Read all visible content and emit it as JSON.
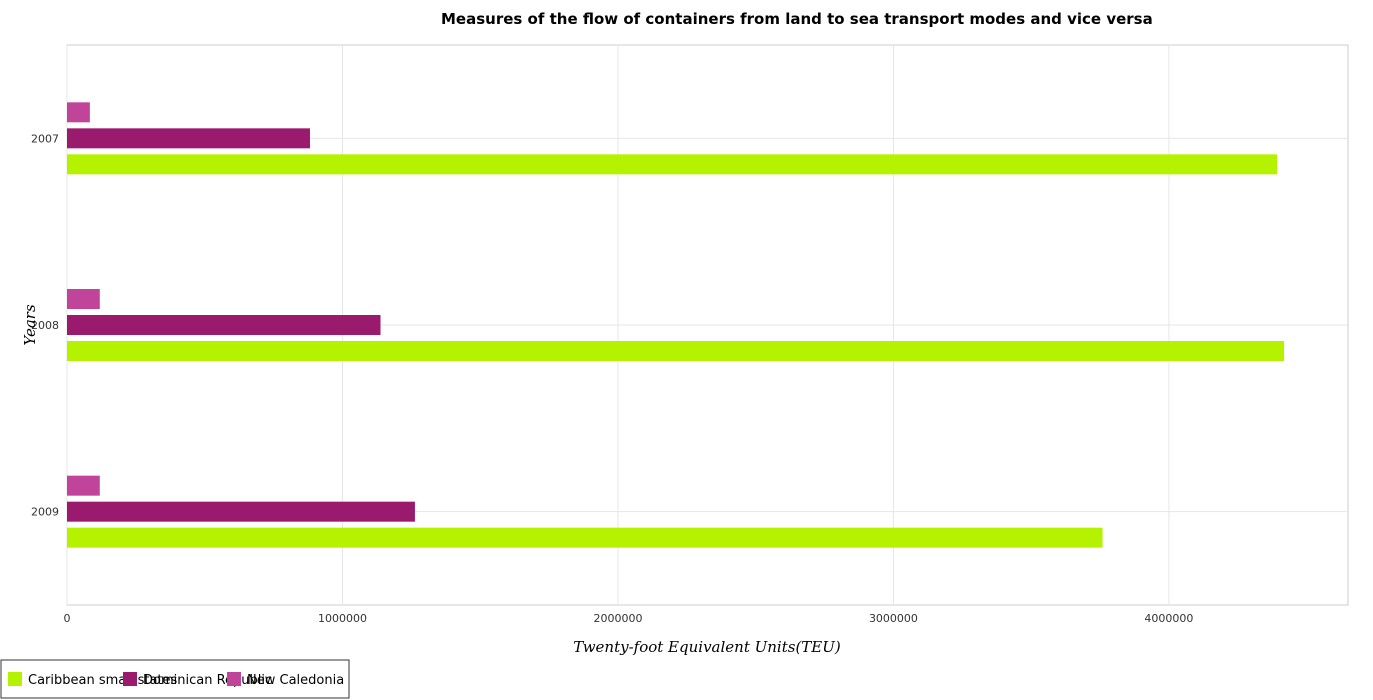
{
  "chart_data": {
    "type": "bar",
    "orientation": "horizontal",
    "title": "Measures of the flow of containers from land to sea transport modes and vice versa",
    "xlabel": "Twenty-foot Equivalent Units(TEU)",
    "ylabel": "Years",
    "categories": [
      "2007",
      "2008",
      "2009"
    ],
    "series": [
      {
        "name": "Caribbean small states",
        "color": "#b5f200",
        "values": [
          4393000,
          4418000,
          3759000
        ]
      },
      {
        "name": "Dominican Republic",
        "color": "#9a1a6e",
        "values": [
          882000,
          1138000,
          1263000
        ]
      },
      {
        "name": "New Caledonia",
        "color": "#c0449a",
        "values": [
          83000,
          119000,
          119000
        ]
      }
    ],
    "xlim": [
      0,
      4650000
    ],
    "xticks": [
      0,
      1000000,
      2000000,
      3000000,
      4000000
    ],
    "xtick_labels": [
      "0",
      "1000000",
      "2000000",
      "3000000",
      "4000000"
    ],
    "grid": true,
    "legend_position": "bottom-left"
  }
}
